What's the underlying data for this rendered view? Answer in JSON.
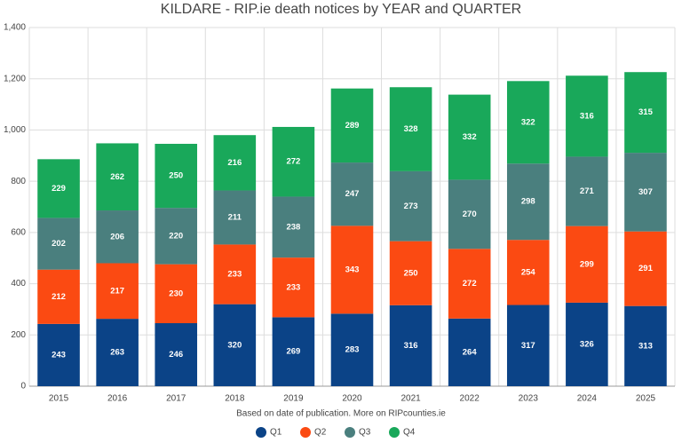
{
  "chart_data": {
    "type": "stacked-bar",
    "title": "KILDARE - RIP.ie death notices by YEAR and QUARTER",
    "subtitle": "Based on date of publication. More on RIPcounties.ie",
    "categories": [
      "2015",
      "2016",
      "2017",
      "2018",
      "2019",
      "2020",
      "2021",
      "2022",
      "2023",
      "2024",
      "2025"
    ],
    "series": [
      {
        "name": "Q1",
        "color": "#0b4387",
        "values": [
          243,
          263,
          246,
          320,
          269,
          283,
          316,
          264,
          317,
          326,
          313
        ]
      },
      {
        "name": "Q2",
        "color": "#fb4a12",
        "values": [
          212,
          217,
          230,
          233,
          233,
          343,
          250,
          272,
          254,
          299,
          291
        ]
      },
      {
        "name": "Q3",
        "color": "#4a7f7e",
        "values": [
          202,
          206,
          220,
          211,
          238,
          247,
          273,
          270,
          298,
          271,
          307
        ]
      },
      {
        "name": "Q4",
        "color": "#19a85a",
        "values": [
          229,
          262,
          250,
          216,
          272,
          289,
          328,
          332,
          322,
          316,
          315
        ]
      }
    ],
    "ylim": [
      0,
      1400
    ],
    "yticks": [
      0,
      200,
      400,
      600,
      800,
      {
        "value": 1000,
        "label": "1,000"
      },
      {
        "value": 1200,
        "label": "1,200"
      },
      {
        "value": 1400,
        "label": "1,400"
      }
    ],
    "grid": true
  }
}
